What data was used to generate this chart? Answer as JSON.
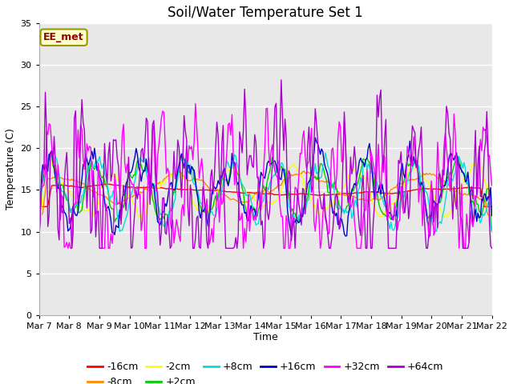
{
  "title": "Soil/Water Temperature Set 1",
  "xlabel": "Time",
  "ylabel": "Temperature (C)",
  "ylim": [
    0,
    35
  ],
  "yticks": [
    0,
    5,
    10,
    15,
    20,
    25,
    30,
    35
  ],
  "x_labels": [
    "Mar 7",
    "Mar 8",
    "Mar 9",
    "Mar 10",
    "Mar 11",
    "Mar 12",
    "Mar 13",
    "Mar 14",
    "Mar 15",
    "Mar 16",
    "Mar 17",
    "Mar 18",
    "Mar 19",
    "Mar 20",
    "Mar 21",
    "Mar 22"
  ],
  "annotation": "EE_met",
  "series_colors": {
    "-16cm": "#ff0000",
    "-8cm": "#ff8800",
    "-2cm": "#ffff00",
    "+2cm": "#00cc00",
    "+8cm": "#00dddd",
    "+16cm": "#0000cc",
    "+32cm": "#ff00ff",
    "+64cm": "#aa00cc"
  },
  "background_color": "#e8e8e8",
  "plot_bg": "#dcdcdc",
  "title_fontsize": 12,
  "axis_fontsize": 9,
  "tick_fontsize": 8,
  "legend_fontsize": 9
}
